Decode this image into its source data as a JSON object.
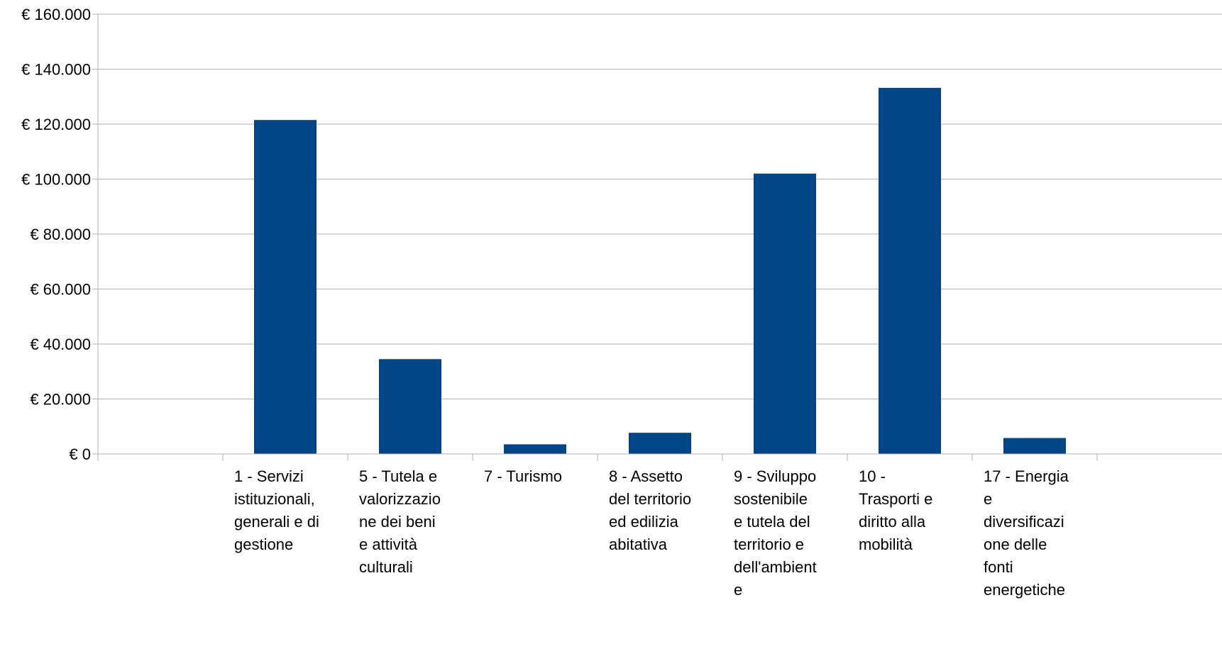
{
  "chart_data": {
    "type": "bar",
    "title": "",
    "xlabel": "",
    "ylabel": "",
    "categories": [
      "",
      "1 - Servizi istituzionali, generali e di gestione",
      "5 - Tutela e valorizzazione dei beni e attività culturali",
      "7 - Turismo",
      "8 - Assetto del territorio ed edilizia abitativa",
      "9 - Sviluppo sostenibile e tutela del territorio e dell'ambiente",
      "10 - Trasporti e diritto alla mobilità",
      "17 - Energia e diversificazione delle fonti energetiche",
      ""
    ],
    "category_label_lines": [
      [],
      [
        "1 - Servizi",
        "istituzionali,",
        "generali e di",
        "gestione"
      ],
      [
        "5 - Tutela e",
        "valorizzazio",
        "ne dei beni",
        "e attività",
        "culturali"
      ],
      [
        "7 - Turismo"
      ],
      [
        "8 - Assetto",
        "del territorio",
        "ed edilizia",
        "abitativa"
      ],
      [
        "9 - Sviluppo",
        "sostenibile",
        "e tutela del",
        "territorio e",
        "dell'ambient",
        "e"
      ],
      [
        "10 -",
        "Trasporti e",
        "diritto alla",
        "mobilità"
      ],
      [
        "17 - Energia",
        "e",
        "diversificazi",
        "one delle",
        "fonti",
        "energetiche"
      ],
      []
    ],
    "values": [
      0,
      121500,
      34500,
      3500,
      7700,
      102000,
      133200,
      5800,
      0
    ],
    "ylim": [
      0,
      160000
    ],
    "yticks": [
      0,
      20000,
      40000,
      60000,
      80000,
      100000,
      120000,
      140000,
      160000
    ],
    "ytick_labels": [
      "€ 0",
      "€ 20.000",
      "€ 40.000",
      "€ 60.000",
      "€ 80.000",
      "€ 100.000",
      "€ 120.000",
      "€ 140.000",
      "€ 160.000"
    ],
    "grid": true,
    "legend": "none",
    "bar_color": "#004586",
    "grid_color": "#b3b3b3",
    "axis_color": "#b3b3b3"
  }
}
